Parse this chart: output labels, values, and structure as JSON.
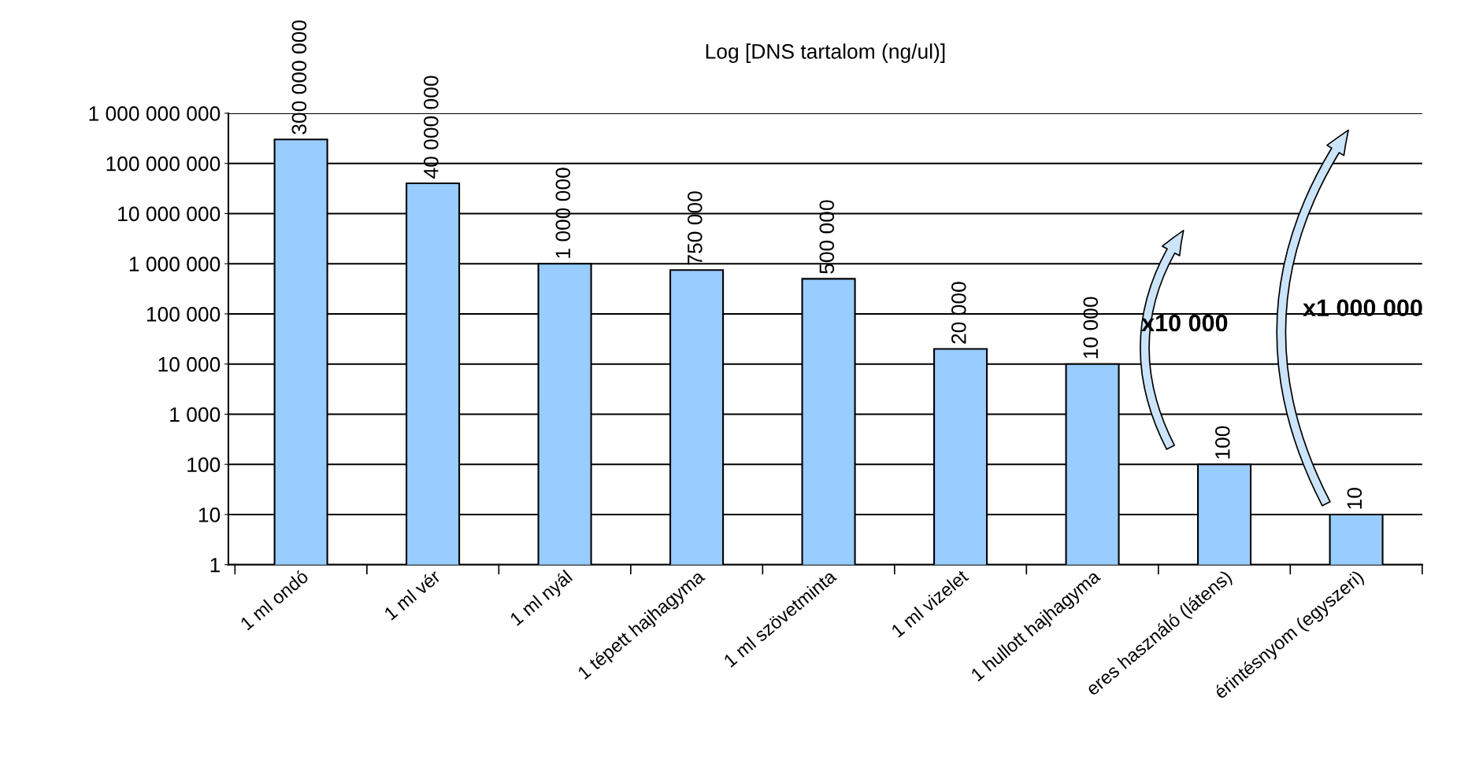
{
  "chart_data": {
    "type": "bar",
    "title": "Log [DNS tartalom (ng/ul)]",
    "categories": [
      "1 ml ondó",
      "1 ml vér",
      "1 ml nyál",
      "1 tépett hajhagyma",
      "1 ml szövetminta",
      "1 ml vizelet",
      "1 hullott hajhagyma",
      "eres használó (látens)",
      "érintésnyom (egyszeri)"
    ],
    "values": [
      300000000,
      40000000,
      1000000,
      750000,
      500000,
      20000,
      10000,
      100,
      10
    ],
    "value_labels": [
      "300 000 000",
      "40 000 000",
      "1 000 000",
      "750 000",
      "500 000",
      "20 000",
      "10 000",
      "100",
      "10"
    ],
    "color": "#99ccff",
    "log": true,
    "ylim": [
      1,
      1000000000
    ],
    "yticks": [
      {
        "value": 1,
        "label": "1"
      },
      {
        "value": 10,
        "label": "10"
      },
      {
        "value": 100,
        "label": "100"
      },
      {
        "value": 1000,
        "label": "1 000"
      },
      {
        "value": 10000,
        "label": "10 000"
      },
      {
        "value": 100000,
        "label": "100 000"
      },
      {
        "value": 1000000,
        "label": "1 000 000"
      },
      {
        "value": 10000000,
        "label": "10 000 000"
      },
      {
        "value": 100000000,
        "label": "100 000 000"
      },
      {
        "value": 1000000000,
        "label": "1 000 000 000"
      }
    ],
    "grid": "y",
    "annotations": [
      "x10 000",
      "x1 000 000"
    ]
  }
}
